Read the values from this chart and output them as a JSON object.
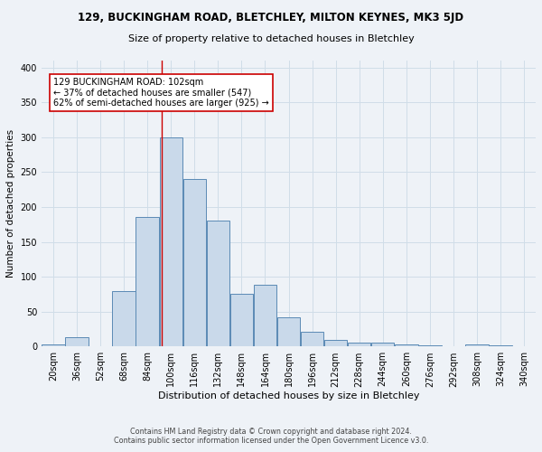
{
  "title": "129, BUCKINGHAM ROAD, BLETCHLEY, MILTON KEYNES, MK3 5JD",
  "subtitle": "Size of property relative to detached houses in Bletchley",
  "xlabel": "Distribution of detached houses by size in Bletchley",
  "ylabel": "Number of detached properties",
  "footer_line1": "Contains HM Land Registry data © Crown copyright and database right 2024.",
  "footer_line2": "Contains public sector information licensed under the Open Government Licence v3.0.",
  "bin_labels": [
    "20sqm",
    "36sqm",
    "52sqm",
    "68sqm",
    "84sqm",
    "100sqm",
    "116sqm",
    "132sqm",
    "148sqm",
    "164sqm",
    "180sqm",
    "196sqm",
    "212sqm",
    "228sqm",
    "244sqm",
    "260sqm",
    "276sqm",
    "292sqm",
    "308sqm",
    "324sqm",
    "340sqm"
  ],
  "bin_edges": [
    20,
    36,
    52,
    68,
    84,
    100,
    116,
    132,
    148,
    164,
    180,
    196,
    212,
    228,
    244,
    260,
    276,
    292,
    308,
    324,
    340
  ],
  "bar_heights": [
    3,
    13,
    0,
    80,
    186,
    300,
    240,
    180,
    75,
    88,
    42,
    21,
    10,
    6,
    6,
    3,
    1,
    0,
    3,
    2
  ],
  "bar_facecolor": "#c9d9ea",
  "bar_edgecolor": "#5a8ab5",
  "grid_color": "#d0dde8",
  "background_color": "#eef2f7",
  "vline_x": 102,
  "vline_color": "#cc0000",
  "annotation_text": "129 BUCKINGHAM ROAD: 102sqm\n← 37% of detached houses are smaller (547)\n62% of semi-detached houses are larger (925) →",
  "annotation_box_color": "#ffffff",
  "annotation_box_edge": "#cc0000",
  "ylim": [
    0,
    410
  ],
  "yticks": [
    0,
    50,
    100,
    150,
    200,
    250,
    300,
    350,
    400
  ],
  "title_fontsize": 8.5,
  "subtitle_fontsize": 8.0,
  "xlabel_fontsize": 8.0,
  "ylabel_fontsize": 7.5,
  "tick_fontsize": 7.0,
  "footer_fontsize": 5.8,
  "annot_fontsize": 7.0
}
